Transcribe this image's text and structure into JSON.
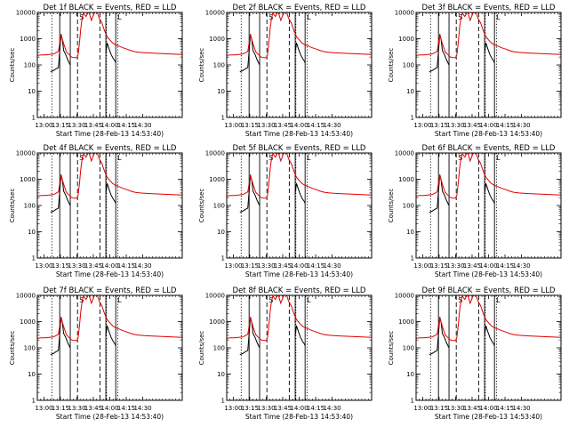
{
  "window": {
    "background": "#ffffff"
  },
  "colors": {
    "events": "#000000",
    "lld": "#e00000",
    "axes": "#000000"
  },
  "chart_data": {
    "type": "line",
    "layout": "3x3 grid",
    "yscale": "log",
    "ylim": [
      1,
      10000
    ],
    "yticks": [
      "1",
      "10",
      "100",
      "1000",
      "10000"
    ],
    "ylabel": "Counts/sec",
    "xlabel": "Start Time (28-Feb-13 14:53:40)",
    "x_unit": "minutes after 12:50",
    "xlim": [
      0,
      220
    ],
    "xtick_positions": [
      10,
      35,
      60,
      85,
      110,
      135,
      160
    ],
    "xtick_labels": [
      "13:00",
      "13:15",
      "13:30",
      "13:45",
      "14:00",
      "14:15",
      "14:30"
    ],
    "vlines": {
      "dotted": [
        22,
        105,
        122
      ],
      "solid": [
        34,
        50,
        104,
        119
      ],
      "dashed": [
        61,
        95
      ]
    },
    "top_markers": [
      "S",
      "L"
    ],
    "panels": [
      {
        "title": "Det 1f BLACK = Events, RED = LLD"
      },
      {
        "title": "Det 2f BLACK = Events, RED = LLD"
      },
      {
        "title": "Det 3f BLACK = Events, RED = LLD"
      },
      {
        "title": "Det 4f BLACK = Events, RED = LLD"
      },
      {
        "title": "Det 5f BLACK = Events, RED = LLD"
      },
      {
        "title": "Det 6f BLACK = Events, RED = LLD"
      },
      {
        "title": "Det 7f BLACK = Events, RED = LLD"
      },
      {
        "title": "Det 8f BLACK = Events, RED = LLD"
      },
      {
        "title": "Det 9f BLACK = Events, RED = LLD"
      }
    ],
    "series": [
      {
        "name": "Events",
        "color": "#000000",
        "segments": [
          {
            "x": [
              20,
              24,
              28,
              32,
              36,
              38,
              40,
              43,
              46,
              50
            ],
            "y": [
              55,
              60,
              70,
              80,
              1500,
              900,
              350,
              250,
              160,
              100
            ]
          },
          {
            "x": [
              104,
              106,
              109,
              112,
              115,
              118,
              119
            ],
            "y": [
              300,
              700,
              400,
              250,
              180,
              140,
              120
            ]
          }
        ]
      },
      {
        "name": "LLD",
        "color": "#e00000",
        "segments": [
          {
            "x": [
              0,
              6,
              12,
              18,
              24,
              28,
              32,
              36,
              40,
              44,
              48,
              52,
              56,
              60,
              62,
              64,
              66,
              68,
              70,
              74,
              78,
              82,
              86,
              90,
              94,
              98,
              102,
              106,
              110,
              114,
              118,
              122,
              126,
              130,
              136,
              142,
              148,
              156,
              165,
              175,
              190,
              205,
              220
            ],
            "y": [
              230,
              240,
              240,
              250,
              260,
              290,
              330,
              1400,
              650,
              320,
              250,
              200,
              190,
              190,
              250,
              700,
              2500,
              6000,
              9500,
              7000,
              11000,
              5000,
              9000,
              12000,
              6000,
              4000,
              2000,
              1200,
              900,
              700,
              600,
              550,
              500,
              450,
              400,
              350,
              320,
              300,
              290,
              280,
              270,
              260,
              250
            ]
          }
        ]
      }
    ]
  }
}
